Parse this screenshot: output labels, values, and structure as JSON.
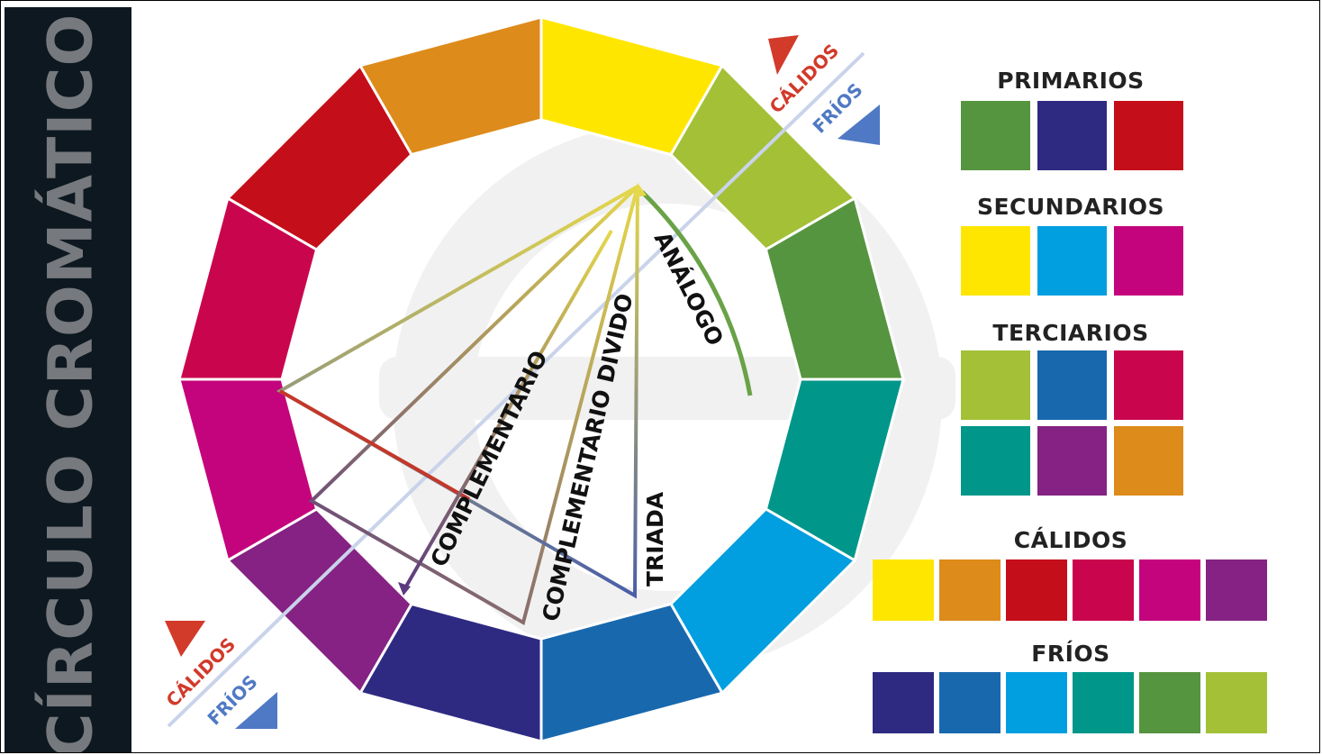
{
  "sidebar": {
    "title": "CÍRCULO CROMÁTICO"
  },
  "wheel": {
    "segments": [
      {
        "name": "yellow",
        "color": "#ffe600"
      },
      {
        "name": "yellow-green",
        "color": "#a3c037"
      },
      {
        "name": "green",
        "color": "#56953f"
      },
      {
        "name": "teal",
        "color": "#009689"
      },
      {
        "name": "cyan",
        "color": "#019ee0"
      },
      {
        "name": "blue",
        "color": "#1868ae"
      },
      {
        "name": "indigo",
        "color": "#2e2a82"
      },
      {
        "name": "violet",
        "color": "#852283"
      },
      {
        "name": "magenta",
        "color": "#c4047c"
      },
      {
        "name": "crimson",
        "color": "#c9064d"
      },
      {
        "name": "red",
        "color": "#c40e19"
      },
      {
        "name": "orange",
        "color": "#dd8b1b"
      }
    ],
    "labels": {
      "analogo": "ANÁLOGO",
      "triada": "TRIADA",
      "complementario_divido": "COMPLEMENTARIO DIVIDO",
      "complementario": "COMPLEMENTARIO",
      "calidos_top": "CÁLIDOS",
      "frios_top": "FRÍOS",
      "calidos_bottom": "CÁLIDOS",
      "frios_bottom": "FRÍOS"
    },
    "marker_colors": {
      "warm": "#d23a2a",
      "cool": "#4f79c4"
    }
  },
  "groups": {
    "primarios": {
      "title": "PRIMARIOS",
      "colors": [
        "#56953f",
        "#2e2a82",
        "#c40e19"
      ]
    },
    "secundarios": {
      "title": "SECUNDARIOS",
      "colors": [
        "#ffe600",
        "#019ee0",
        "#c4047c"
      ]
    },
    "terciarios": {
      "title": "TERCIARIOS",
      "colors": [
        "#a3c037",
        "#1868ae",
        "#c9064d",
        "#009689",
        "#852283",
        "#dd8b1b"
      ]
    },
    "calidos": {
      "title": "CÁLIDOS",
      "colors": [
        "#ffe600",
        "#dd8b1b",
        "#c40e19",
        "#c9064d",
        "#c4047c",
        "#852283"
      ]
    },
    "frios": {
      "title": "FRÍOS",
      "colors": [
        "#2e2a82",
        "#1868ae",
        "#019ee0",
        "#009689",
        "#56953f",
        "#a3c037"
      ]
    }
  }
}
